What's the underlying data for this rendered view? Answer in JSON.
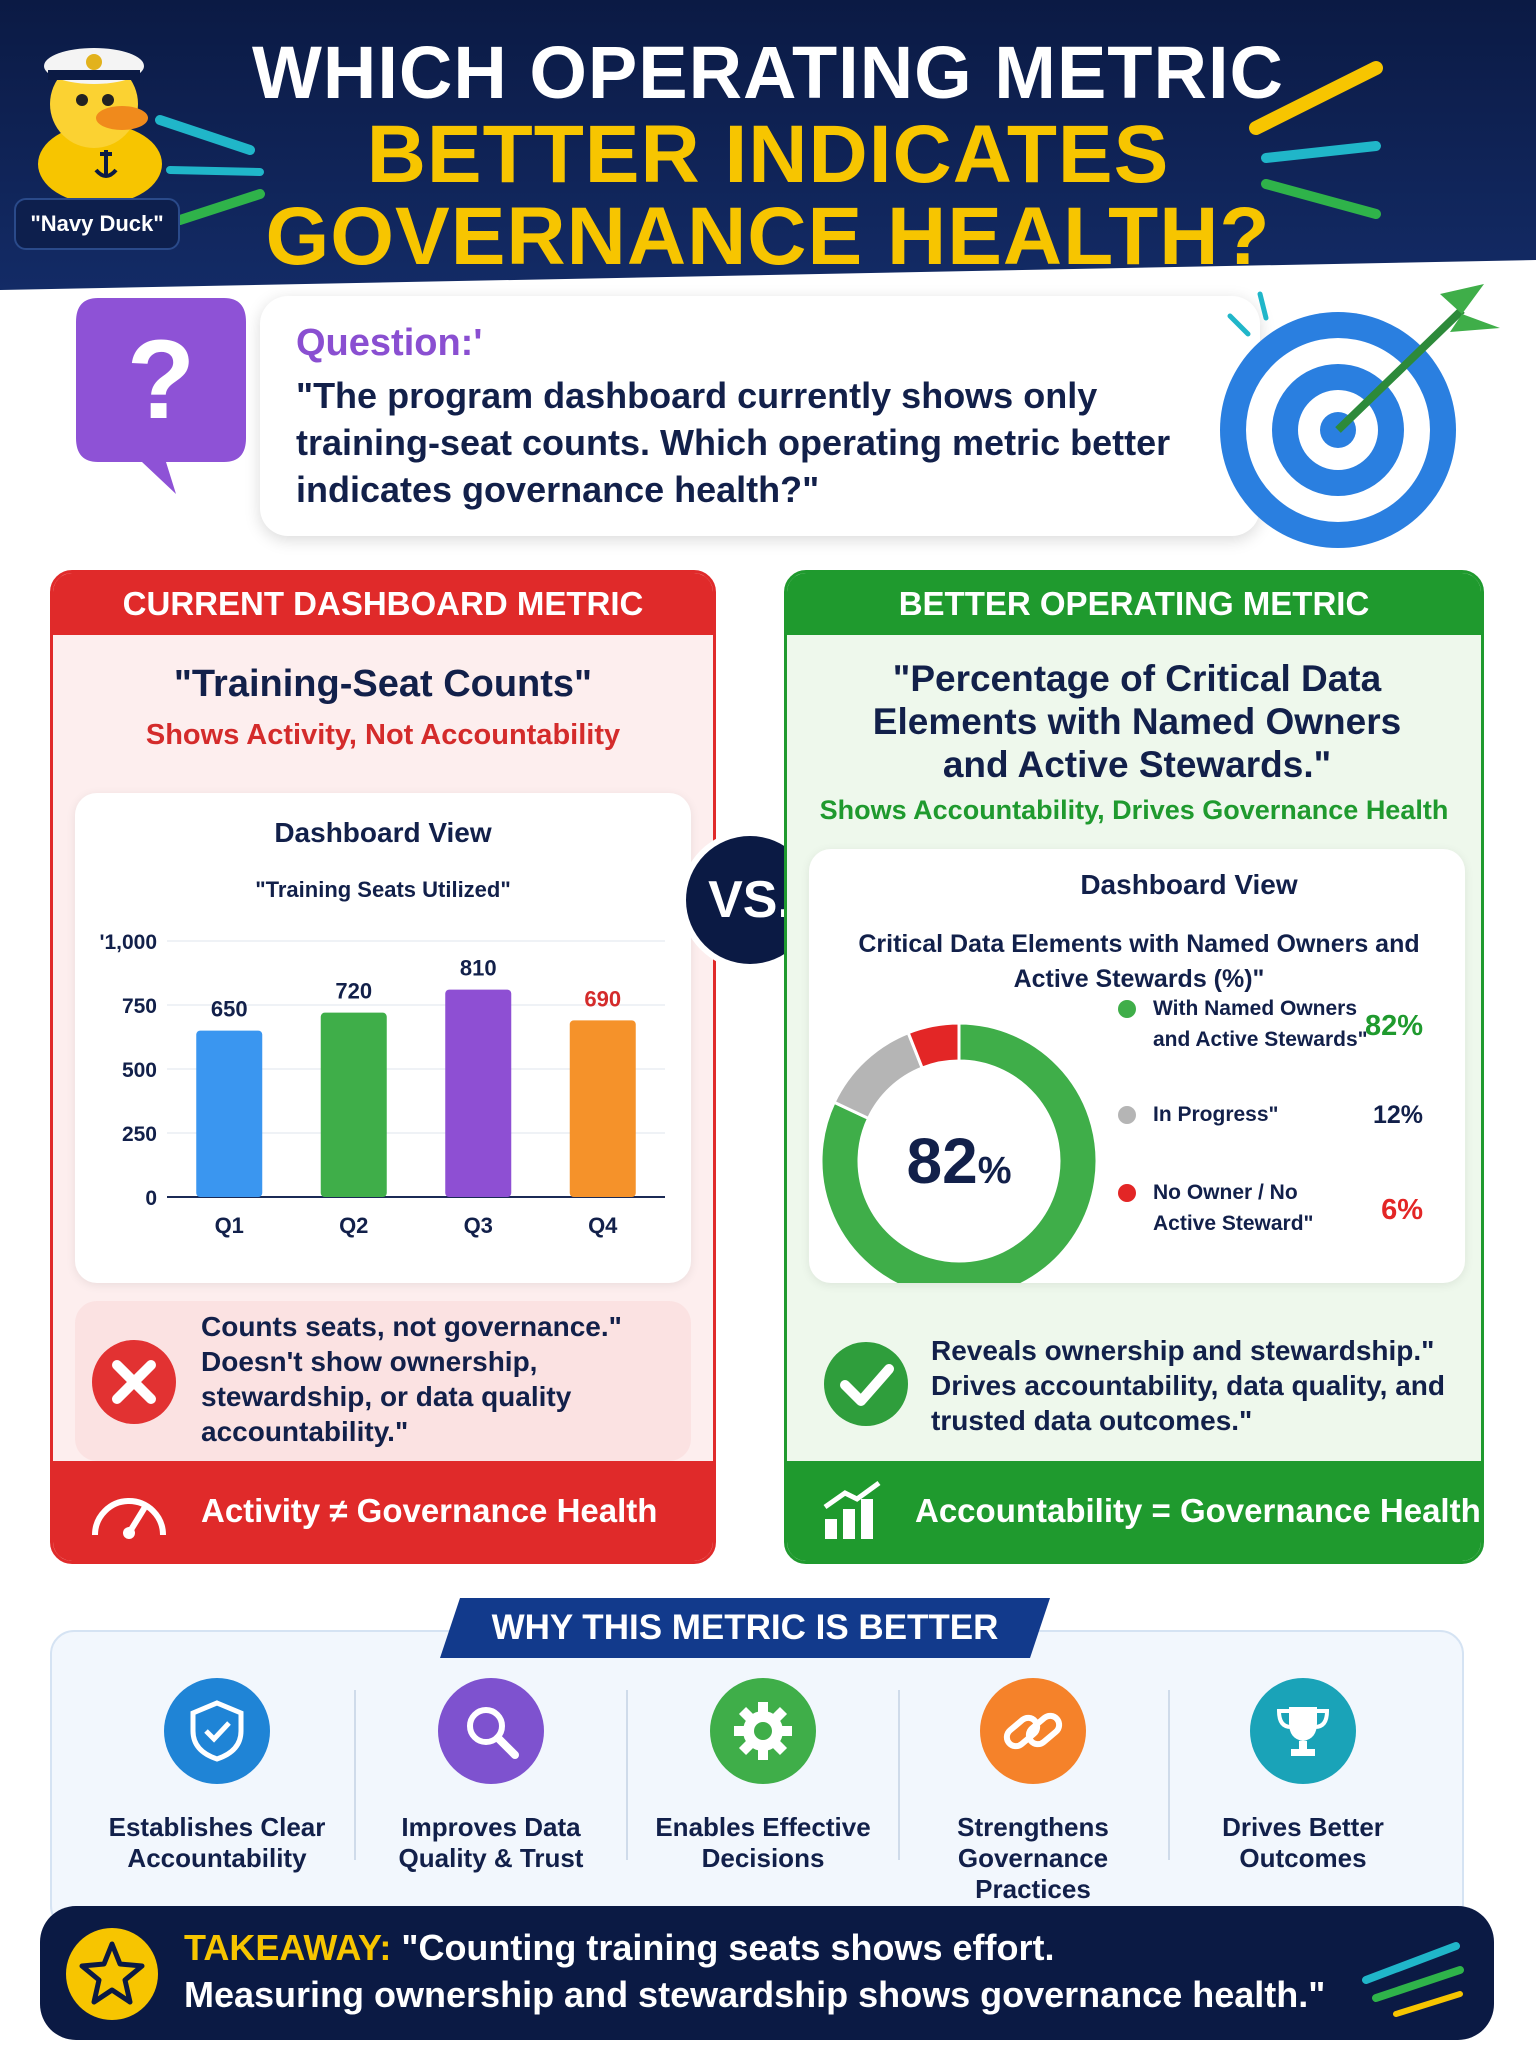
{
  "header": {
    "title_line1": "WHICH OPERATING METRIC",
    "title_line2": "BETTER INDICATES",
    "title_line3": "GOVERNANCE HEALTH?",
    "mascot_label": "\"Navy Duck\""
  },
  "question": {
    "label": "Question:'",
    "text": "\"The program dashboard currently shows only training-seat counts. Which operating metric better indicates governance health?\""
  },
  "vs_label": "VS.",
  "left_panel": {
    "header": "CURRENT DASHBOARD METRIC",
    "metric_name": "\"Training-Seat Counts\"",
    "subtitle": "Shows Activity, Not Accountability",
    "dashboard_title": "Dashboard View",
    "note": "Counts seats, not governance.\" Doesn't show ownership, stewardship, or data quality accountability.\"",
    "footer": "Activity ≠ Governance Health",
    "colors": {
      "accent": "#e02a2a"
    }
  },
  "right_panel": {
    "header": "BETTER OPERATING METRIC",
    "metric_name": "\"Percentage of Critical Data Elements with Named Owners and Active Stewards.\"",
    "subtitle": "Shows Accountability, Drives Governance Health",
    "dashboard_title": "Dashboard View",
    "note": "Reveals ownership and stewardship.\" Drives accountability, data quality, and trusted data outcomes.\"",
    "footer": "Accountability = Governance Health",
    "colors": {
      "accent": "#1f9a2e"
    }
  },
  "chart_data": [
    {
      "type": "bar",
      "title": "\"Training Seats Utilized\"",
      "categories": [
        "Q1",
        "Q2",
        "Q3",
        "Q4"
      ],
      "values": [
        650,
        720,
        810,
        690
      ],
      "value_labels": [
        "650",
        "720",
        "810",
        "690"
      ],
      "colors": [
        "#3a96f0",
        "#3fae49",
        "#8e4fd3",
        "#f5922a"
      ],
      "label_colors": [
        "#12204a",
        "#12204a",
        "#12204a",
        "#d42b2b"
      ],
      "y_ticks": [
        0,
        250,
        500,
        750,
        1000
      ],
      "y_tick_labels": [
        "0",
        "250",
        "500",
        "750",
        "'1,000"
      ],
      "ylim": [
        0,
        1000
      ],
      "grid": true
    },
    {
      "type": "pie",
      "title": "Critical Data Elements with Named Owners and Active Stewards (%)\"",
      "center_value": "82",
      "center_unit": "%",
      "slices": [
        {
          "label_line1": "With Named Owners",
          "label_line2": "and Active Stewards\"",
          "value": 82,
          "value_label": "82%",
          "color": "#3fae49",
          "value_color": "#1f9a2e"
        },
        {
          "label_line1": "In Progress\"",
          "label_line2": "",
          "value": 12,
          "value_label": "12%",
          "color": "#b5b5b5",
          "value_color": "#12204a"
        },
        {
          "label_line1": "No Owner / No",
          "label_line2": "Active Steward\"",
          "value": 6,
          "value_label": "6%",
          "color": "#e32626",
          "value_color": "#e32626"
        }
      ],
      "legend_position": "right"
    }
  ],
  "why": {
    "banner": "WHY THIS METRIC IS BETTER",
    "items": [
      {
        "label": "Establishes Clear Accountability",
        "icon": "shield-check-icon",
        "color": "#1f84d6"
      },
      {
        "label": "Improves Data Quality & Trust",
        "icon": "magnifier-icon",
        "color": "#7e52cf"
      },
      {
        "label": "Enables Effective Decisions",
        "icon": "gear-icon",
        "color": "#3fae49"
      },
      {
        "label": "Strengthens Governance Practices",
        "icon": "chain-link-icon",
        "color": "#f5822a"
      },
      {
        "label": "Drives Better Outcomes",
        "icon": "trophy-icon",
        "color": "#1aa3b8"
      }
    ]
  },
  "takeaway": {
    "label": "TAKEAWAY:",
    "line1": "\"Counting training seats shows effort.",
    "line2": "Measuring ownership and stewardship shows governance health.\""
  }
}
